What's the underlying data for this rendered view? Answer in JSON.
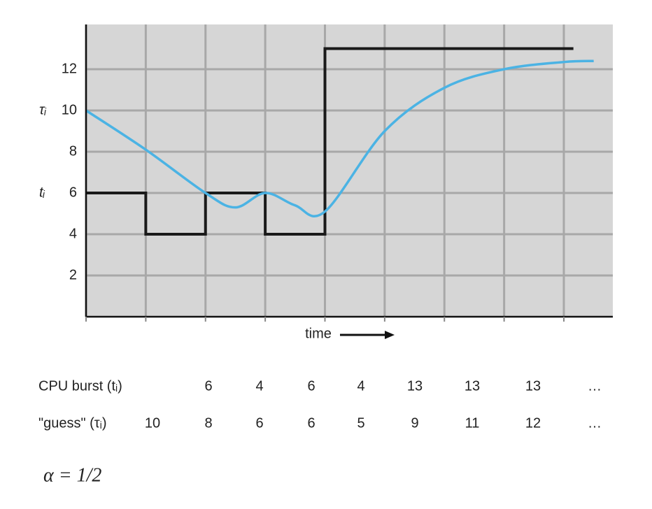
{
  "chart_data": {
    "type": "line",
    "xlim": [
      0,
      8.82
    ],
    "ylim": [
      0,
      14.17
    ],
    "xticks": [
      0,
      1,
      2,
      3,
      4,
      5,
      6,
      7,
      8
    ],
    "yticks": [
      2,
      4,
      6,
      8,
      10,
      12
    ],
    "grid": true,
    "x_label": "time",
    "annotations": [
      {
        "text": "τᵢ",
        "y": 10
      },
      {
        "text": "tᵢ",
        "y": 6
      }
    ],
    "series": [
      {
        "drawstyle": "steps-post",
        "color": "#1a1a1a",
        "x": [
          0,
          1,
          2,
          3,
          4,
          8.16
        ],
        "values": [
          6,
          4,
          6,
          4,
          13,
          13
        ]
      },
      {
        "drawstyle": "smooth",
        "color": "#4bb3e4",
        "x": [
          0,
          1,
          2,
          2.5,
          3,
          3.5,
          4,
          5,
          6,
          7,
          8,
          8.5
        ],
        "values": [
          10,
          8.1,
          6,
          5.3,
          6,
          5.4,
          5.1,
          9,
          11.1,
          12,
          12.35,
          12.4
        ]
      }
    ]
  },
  "table": {
    "rows": [
      {
        "label": "CPU burst (tᵢ)",
        "cells": [
          null,
          6,
          4,
          6,
          4,
          13,
          13,
          13,
          "…"
        ]
      },
      {
        "label": "\"guess\" (τᵢ)",
        "cells": [
          10,
          8,
          6,
          6,
          5,
          9,
          11,
          12,
          "…"
        ]
      }
    ]
  },
  "formula": "α = 1/2"
}
